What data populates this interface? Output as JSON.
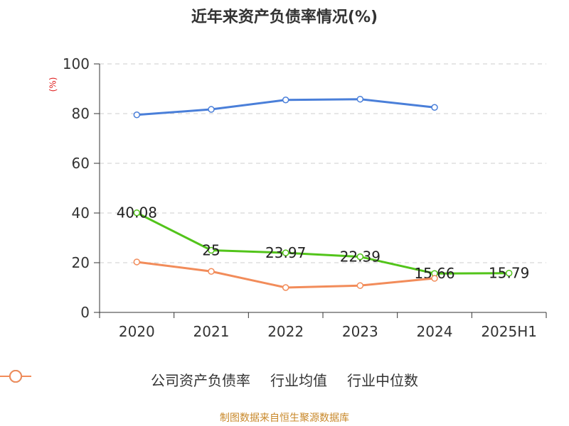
{
  "chart_data": {
    "type": "line",
    "title": "近年来资产负债率情况(%)",
    "unit_label": "(%)",
    "categories": [
      "2020",
      "2021",
      "2022",
      "2023",
      "2024",
      "2025H1"
    ],
    "yticks": [
      "0",
      "20",
      "40",
      "60",
      "80",
      "100"
    ],
    "ylim": [
      0,
      100
    ],
    "grid": true,
    "legend_position": "bottom",
    "series": [
      {
        "name": "公司资产负债率",
        "color": "#52c41a",
        "values": [
          40.08,
          25,
          23.97,
          22.39,
          15.66,
          15.79
        ],
        "labels": [
          "40.08",
          "25",
          "23.97",
          "22.39",
          "15.66",
          "15.79"
        ]
      },
      {
        "name": "行业均值",
        "color": "#4a7fd9",
        "values": [
          79.5,
          81.7,
          85.5,
          85.8,
          82.5,
          null
        ]
      },
      {
        "name": "行业中位数",
        "color": "#f28c5a",
        "values": [
          20.3,
          16.5,
          10.0,
          10.8,
          13.7,
          null
        ]
      }
    ]
  },
  "source": "制图数据来自恒生聚源数据库"
}
